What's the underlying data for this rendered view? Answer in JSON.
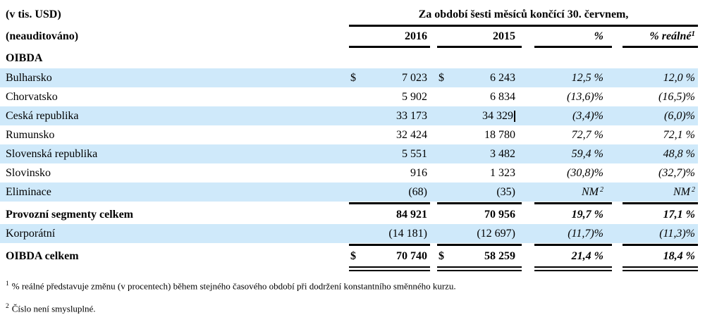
{
  "colors": {
    "row_stripe": "#cfe9fa",
    "text": "#000000"
  },
  "table": {
    "unit_note": "(v tis. USD)",
    "audit_note": "(neauditováno)",
    "period_header": "Za období šesti měsíců končící 30. červnem,",
    "columns": {
      "y2016": "2016",
      "y2015": "2015",
      "pct": "%",
      "pct_real": "% reálné",
      "pct_real_sup": "1"
    },
    "section": "OIBDA",
    "rows": [
      {
        "label": "Bulharsko",
        "cur16": "$",
        "v16": "7 023",
        "cur15": "$",
        "v15": "6 243",
        "pct": "12,5 %",
        "pctReal": "12,0 %"
      },
      {
        "label": "Chorvatsko",
        "v16": "5 902",
        "v15": "6 834",
        "pct": "(13,6)%",
        "pctReal": "(16,5)%"
      },
      {
        "label": "Ceská republika",
        "v16": "33 173",
        "v15": "34 329",
        "pct": "(3,4)%",
        "pctReal": "(6,0)%"
      },
      {
        "label": "Rumunsko",
        "v16": "32 424",
        "v15": "18 780",
        "pct": "72,7 %",
        "pctReal": "72,1 %"
      },
      {
        "label": "Slovenská republika",
        "v16": "5 551",
        "v15": "3 482",
        "pct": "59,4 %",
        "pctReal": "48,8 %"
      },
      {
        "label": "Slovinsko",
        "v16": "916",
        "v15": "1 323",
        "pct": "(30,8)%",
        "pctReal": "(32,7)%"
      },
      {
        "label": "Eliminace",
        "v16": "(68)",
        "v15": "(35)",
        "pct": "NM",
        "pctSup": "2",
        "pctReal": "NM",
        "pctRealSup": "2"
      },
      {
        "label": "Provozní segmenty celkem",
        "v16": "84 921",
        "v15": "70 956",
        "pct": "19,7 %",
        "pctReal": "17,1 %"
      },
      {
        "label": "Korporátní",
        "v16": "(14 181)",
        "v15": "(12 697)",
        "pct": "(11,7)%",
        "pctReal": "(11,3)%"
      },
      {
        "label": "OIBDA celkem",
        "cur16": "$",
        "v16": "70 740",
        "cur15": "$",
        "v15": "58 259",
        "pct": "21,4 %",
        "pctReal": "18,4 %"
      }
    ]
  },
  "footnotes": [
    {
      "sup": "1",
      "text": "% reálné představuje změnu (v procentech) během stejného časového období při dodržení konstantního směnného kurzu."
    },
    {
      "sup": "2",
      "text": "Číslo není smysluplné."
    }
  ]
}
